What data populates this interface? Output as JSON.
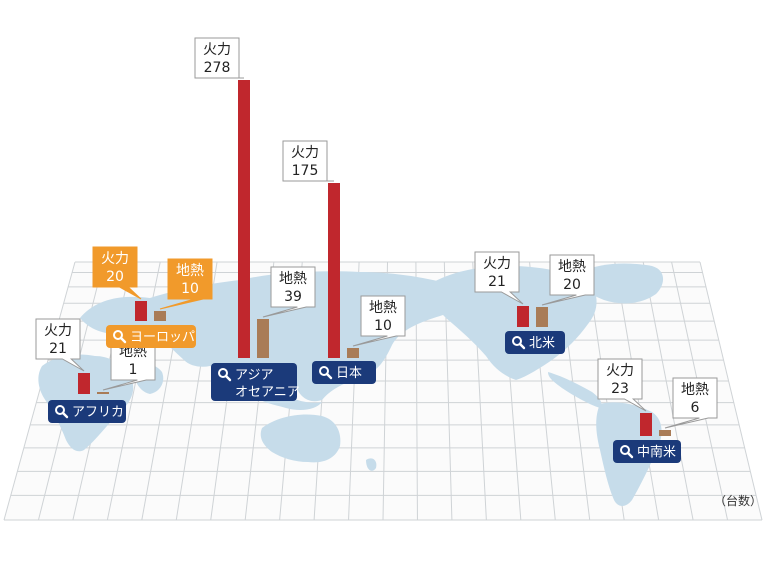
{
  "chart_data": {
    "type": "bar",
    "series": [
      {
        "name": "火力",
        "color": "#c0272d"
      },
      {
        "name": "地熱",
        "color": "#a97c57"
      }
    ],
    "regions": [
      {
        "id": "asia",
        "label": "アジア\nオセアニア",
        "values": [
          278,
          39
        ],
        "selected": false
      },
      {
        "id": "japan",
        "label": "日本",
        "values": [
          175,
          10
        ],
        "selected": false
      },
      {
        "id": "europe",
        "label": "ヨーロッパ",
        "values": [
          20,
          10
        ],
        "selected": true
      },
      {
        "id": "africa",
        "label": "アフリカ",
        "values": [
          21,
          1
        ],
        "selected": false
      },
      {
        "id": "north-america",
        "label": "北米",
        "values": [
          21,
          20
        ],
        "selected": false
      },
      {
        "id": "latin-america",
        "label": "中南米",
        "values": [
          23,
          6
        ],
        "selected": false
      }
    ],
    "unit_note": "（台数）"
  },
  "colors": {
    "map_land": "#c6dcea",
    "grid": "#cfd3d6",
    "label_bg": "#1b3a7a",
    "label_bg_selected": "#f19a2b",
    "callout_border": "#9a9a9a"
  },
  "icons": {
    "region_button": "search-icon"
  }
}
